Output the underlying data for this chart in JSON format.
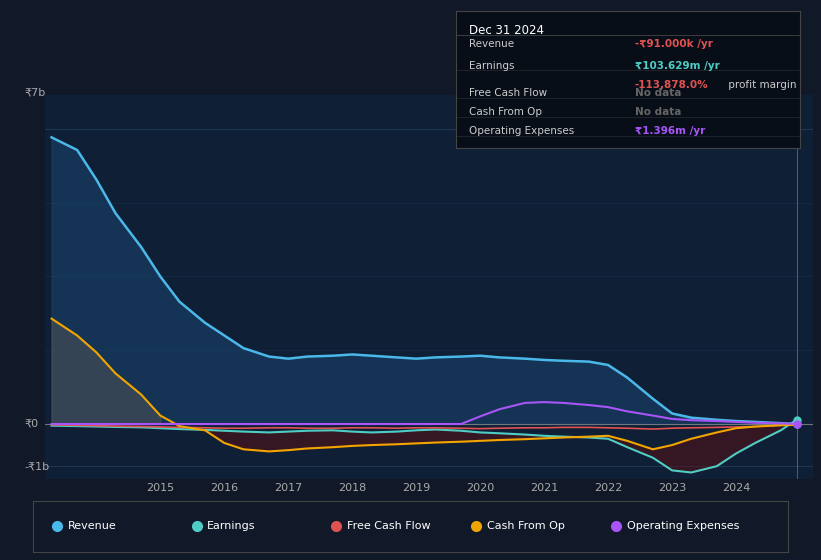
{
  "bg_color": "#111827",
  "plot_bg_color": "#0f1f35",
  "grid_color": "#1e3a5f",
  "title_text": "Dec 31 2024",
  "ylim": [
    -1300000000.0,
    7800000000.0
  ],
  "years": [
    2013.3,
    2013.7,
    2014.0,
    2014.3,
    2014.7,
    2015.0,
    2015.3,
    2015.7,
    2016.0,
    2016.3,
    2016.7,
    2017.0,
    2017.3,
    2017.7,
    2018.0,
    2018.3,
    2018.7,
    2019.0,
    2019.3,
    2019.7,
    2020.0,
    2020.3,
    2020.7,
    2021.0,
    2021.3,
    2021.7,
    2022.0,
    2022.3,
    2022.7,
    2023.0,
    2023.3,
    2023.7,
    2024.0,
    2024.3,
    2024.7,
    2024.95
  ],
  "revenue": [
    6800000000.0,
    6500000000.0,
    5800000000.0,
    5000000000.0,
    4200000000.0,
    3500000000.0,
    2900000000.0,
    2400000000.0,
    2100000000.0,
    1800000000.0,
    1600000000.0,
    1550000000.0,
    1600000000.0,
    1620000000.0,
    1650000000.0,
    1620000000.0,
    1580000000.0,
    1550000000.0,
    1580000000.0,
    1600000000.0,
    1620000000.0,
    1580000000.0,
    1550000000.0,
    1520000000.0,
    1500000000.0,
    1480000000.0,
    1400000000.0,
    1100000000.0,
    600000000.0,
    250000000.0,
    150000000.0,
    100000000.0,
    70000000.0,
    50000000.0,
    20000000.0,
    -91000.0
  ],
  "earnings": [
    -40000000.0,
    -50000000.0,
    -60000000.0,
    -70000000.0,
    -80000000.0,
    -100000000.0,
    -120000000.0,
    -140000000.0,
    -160000000.0,
    -180000000.0,
    -200000000.0,
    -180000000.0,
    -160000000.0,
    -150000000.0,
    -180000000.0,
    -200000000.0,
    -180000000.0,
    -150000000.0,
    -130000000.0,
    -160000000.0,
    -200000000.0,
    -220000000.0,
    -250000000.0,
    -280000000.0,
    -300000000.0,
    -320000000.0,
    -350000000.0,
    -550000000.0,
    -800000000.0,
    -1100000000.0,
    -1150000000.0,
    -1000000000.0,
    -700000000.0,
    -450000000.0,
    -150000000.0,
    103629000.0
  ],
  "cash_from_op": [
    2500000000.0,
    2100000000.0,
    1700000000.0,
    1200000000.0,
    700000000.0,
    200000000.0,
    -50000000.0,
    -150000000.0,
    -450000000.0,
    -600000000.0,
    -650000000.0,
    -620000000.0,
    -580000000.0,
    -550000000.0,
    -520000000.0,
    -500000000.0,
    -480000000.0,
    -460000000.0,
    -440000000.0,
    -420000000.0,
    -400000000.0,
    -380000000.0,
    -360000000.0,
    -340000000.0,
    -320000000.0,
    -300000000.0,
    -280000000.0,
    -400000000.0,
    -600000000.0,
    -500000000.0,
    -350000000.0,
    -200000000.0,
    -100000000.0,
    -60000000.0,
    -30000000.0,
    -20000000.0
  ],
  "free_cash_flow": [
    -20000000.0,
    -30000000.0,
    -40000000.0,
    -50000000.0,
    -60000000.0,
    -70000000.0,
    -80000000.0,
    -90000000.0,
    -100000000.0,
    -100000000.0,
    -90000000.0,
    -90000000.0,
    -100000000.0,
    -100000000.0,
    -90000000.0,
    -90000000.0,
    -100000000.0,
    -90000000.0,
    -90000000.0,
    -100000000.0,
    -110000000.0,
    -100000000.0,
    -90000000.0,
    -90000000.0,
    -80000000.0,
    -80000000.0,
    -90000000.0,
    -100000000.0,
    -120000000.0,
    -100000000.0,
    -90000000.0,
    -80000000.0,
    -70000000.0,
    -60000000.0,
    -30000000.0,
    -10000000.0
  ],
  "op_expenses": [
    0,
    0,
    0,
    0,
    0,
    0,
    0,
    0,
    0,
    0,
    0,
    0,
    0,
    0,
    0,
    0,
    0,
    0,
    0,
    0,
    180000000.0,
    350000000.0,
    500000000.0,
    520000000.0,
    500000000.0,
    450000000.0,
    400000000.0,
    300000000.0,
    200000000.0,
    120000000.0,
    90000000.0,
    70000000.0,
    50000000.0,
    30000000.0,
    15000000.0,
    1396000.0
  ],
  "revenue_color": "#4ab8e8",
  "earnings_color": "#4ecdc4",
  "free_cash_flow_color": "#e05252",
  "cash_from_op_color": "#f0a500",
  "op_expenses_color": "#a855f7",
  "legend_items": [
    "Revenue",
    "Earnings",
    "Free Cash Flow",
    "Cash From Op",
    "Operating Expenses"
  ]
}
